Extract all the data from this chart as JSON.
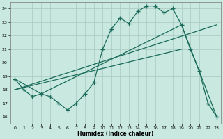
{
  "xlabel": "Humidex (Indice chaleur)",
  "xlim": [
    -0.5,
    23.5
  ],
  "ylim": [
    15.5,
    24.5
  ],
  "yticks": [
    16,
    17,
    18,
    19,
    20,
    21,
    22,
    23,
    24
  ],
  "xticks": [
    0,
    1,
    2,
    3,
    4,
    5,
    6,
    7,
    8,
    9,
    10,
    11,
    12,
    13,
    14,
    15,
    16,
    17,
    18,
    19,
    20,
    21,
    22,
    23
  ],
  "bg_color": "#c8e8e0",
  "grid_color": "#a8c8c0",
  "line_color": "#1a6b5a",
  "line1_x": [
    0,
    1,
    2,
    3,
    4,
    5,
    6,
    7,
    8,
    9,
    10,
    11,
    12,
    13,
    14,
    15,
    16,
    17,
    18,
    19,
    20,
    21,
    22,
    23
  ],
  "line1_y": [
    18.8,
    18.0,
    17.5,
    17.7,
    17.5,
    17.0,
    16.5,
    17.0,
    17.7,
    18.5,
    21.0,
    22.5,
    23.3,
    22.9,
    23.8,
    24.2,
    24.2,
    23.7,
    24.0,
    22.8,
    21.0,
    19.4,
    17.0,
    16.0
  ],
  "line2_x": [
    0,
    3,
    19,
    23
  ],
  "line2_y": [
    18.8,
    17.7,
    22.8,
    16.0
  ],
  "line3_x": [
    0,
    19
  ],
  "line3_y": [
    18.0,
    21.0
  ],
  "line4_x": [
    0,
    23
  ],
  "line4_y": [
    18.0,
    22.8
  ]
}
